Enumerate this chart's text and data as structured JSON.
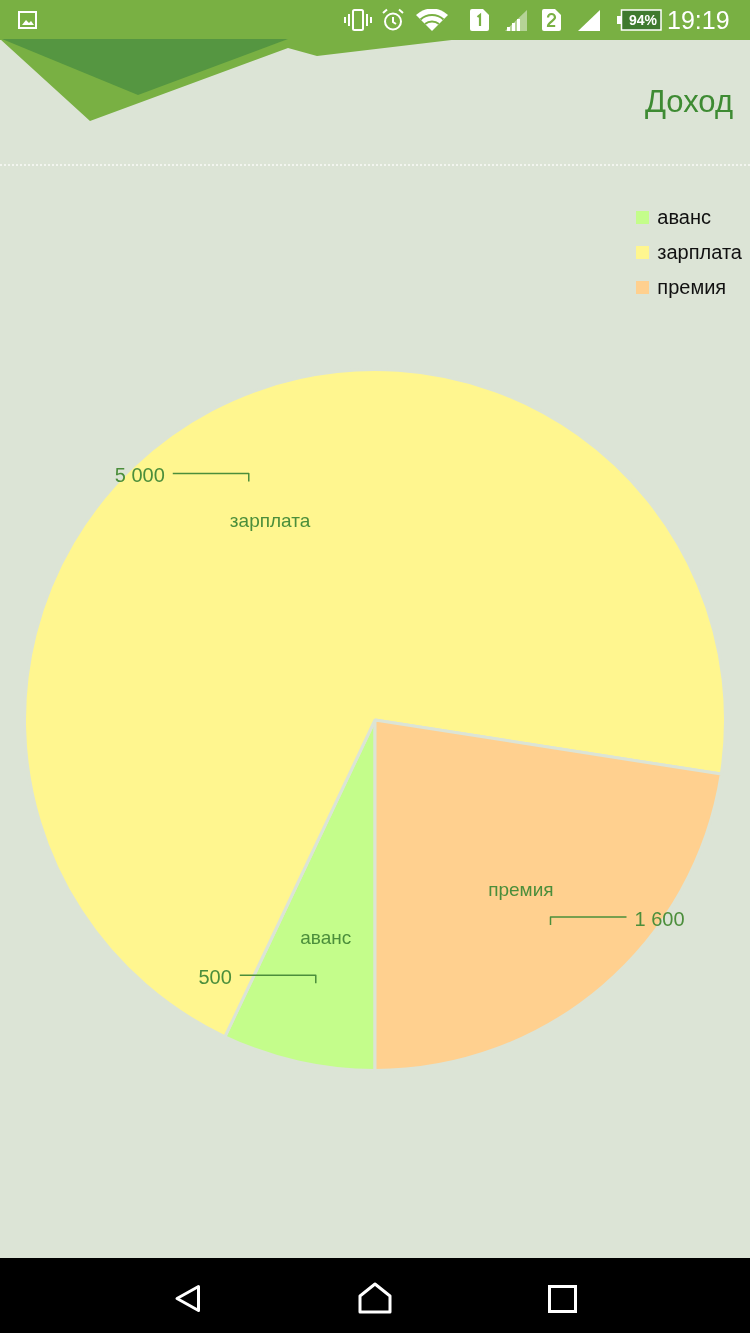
{
  "chart_data": {
    "type": "pie",
    "title": "Доход",
    "categories": [
      "аванс",
      "зарплата",
      "премия"
    ],
    "values": [
      500,
      5000,
      1600
    ],
    "colors": [
      "#c4fd8b",
      "#fff68f",
      "#ffd08f"
    ],
    "value_labels": [
      "500",
      "5 000",
      "1 600"
    ],
    "legend": "top right",
    "annotations": [
      "94%",
      "19:19"
    ]
  }
}
